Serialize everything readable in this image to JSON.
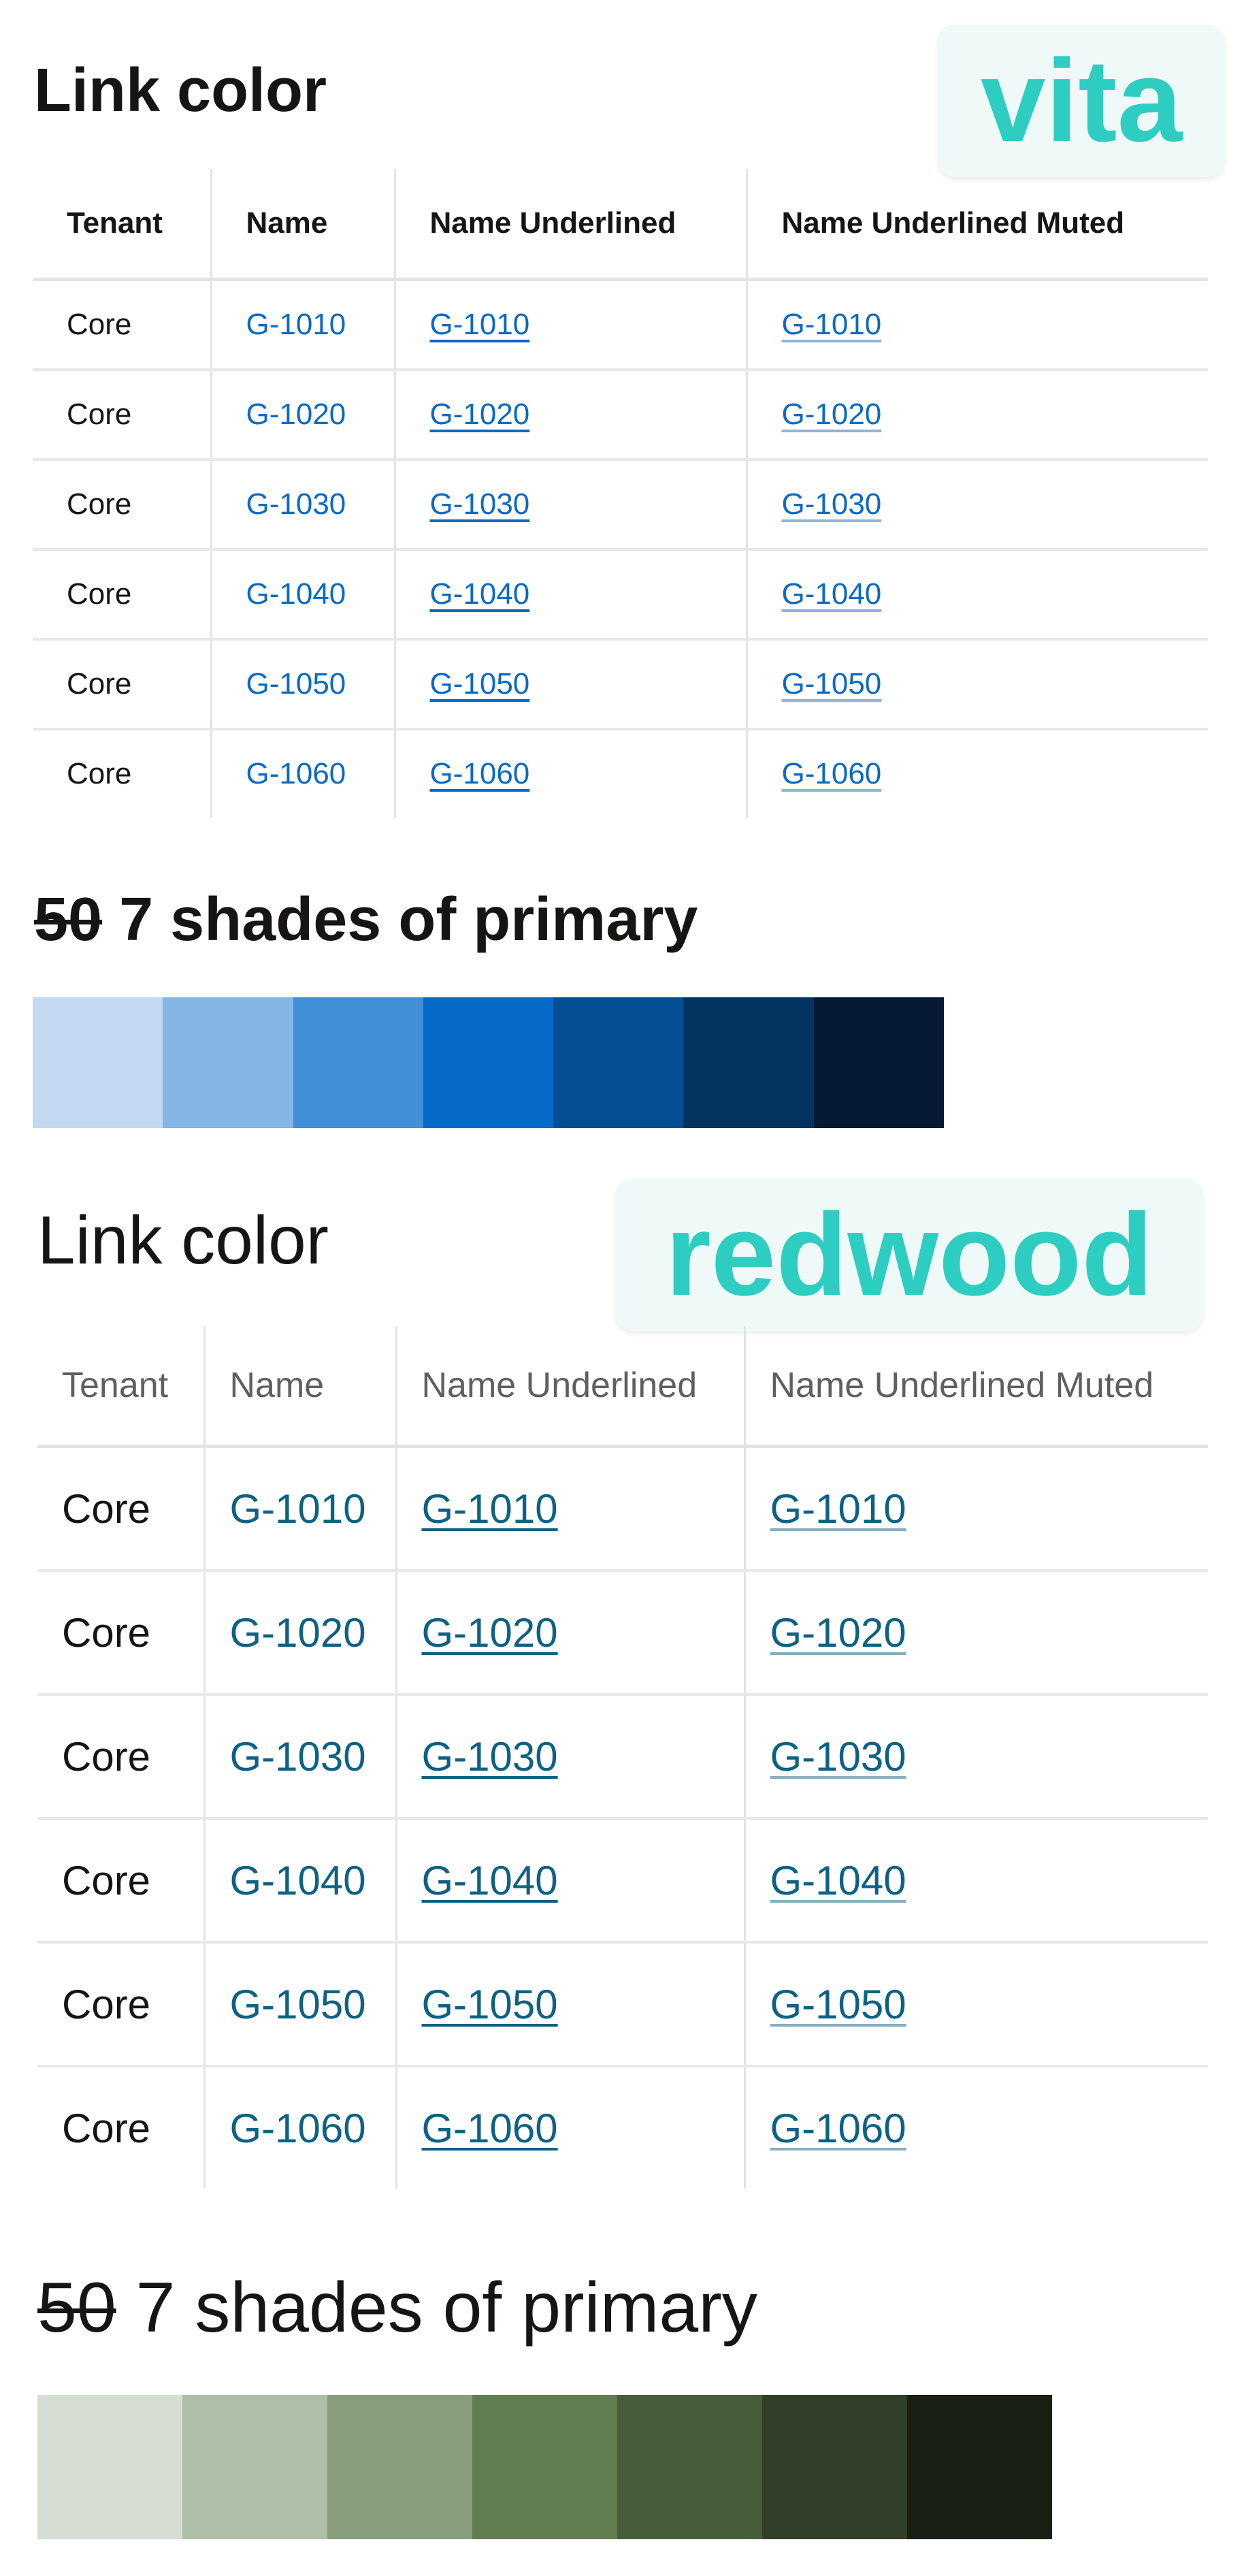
{
  "sections": [
    {
      "tenant_badge": "vita",
      "title": "Link color",
      "columns": [
        "Tenant",
        "Name",
        "Name Underlined",
        "Name Underlined Muted"
      ],
      "rows": [
        [
          "Core",
          "G-1010",
          "G-1010",
          "G-1010"
        ],
        [
          "Core",
          "G-1020",
          "G-1020",
          "G-1020"
        ],
        [
          "Core",
          "G-1030",
          "G-1030",
          "G-1030"
        ],
        [
          "Core",
          "G-1040",
          "G-1040",
          "G-1040"
        ],
        [
          "Core",
          "G-1050",
          "G-1050",
          "G-1050"
        ],
        [
          "Core",
          "G-1060",
          "G-1060",
          "G-1060"
        ]
      ],
      "shades_heading": {
        "struck": "50",
        "text": " 7 shades of primary"
      },
      "link_color": "#0a6ac6",
      "shades": [
        "#c3d9f1",
        "#84b5e4",
        "#418fd6",
        "#066bc8",
        "#044f94",
        "#03335f",
        "#061a33"
      ]
    },
    {
      "tenant_badge": "redwood",
      "title": "Link color",
      "columns": [
        "Tenant",
        "Name",
        "Name Underlined",
        "Name Underlined Muted"
      ],
      "rows": [
        [
          "Core",
          "G-1010",
          "G-1010",
          "G-1010"
        ],
        [
          "Core",
          "G-1020",
          "G-1020",
          "G-1020"
        ],
        [
          "Core",
          "G-1030",
          "G-1030",
          "G-1030"
        ],
        [
          "Core",
          "G-1040",
          "G-1040",
          "G-1040"
        ],
        [
          "Core",
          "G-1050",
          "G-1050",
          "G-1050"
        ],
        [
          "Core",
          "G-1060",
          "G-1060",
          "G-1060"
        ]
      ],
      "shades_heading": {
        "struck": "50",
        "text": " 7 shades of primary"
      },
      "link_color": "#0d6184",
      "shades": [
        "#d6ded4",
        "#aebea7",
        "#889d7b",
        "#627d4f",
        "#485d3b",
        "#324029",
        "#1a1f15"
      ]
    }
  ],
  "badge_color": "#2ecdc1"
}
